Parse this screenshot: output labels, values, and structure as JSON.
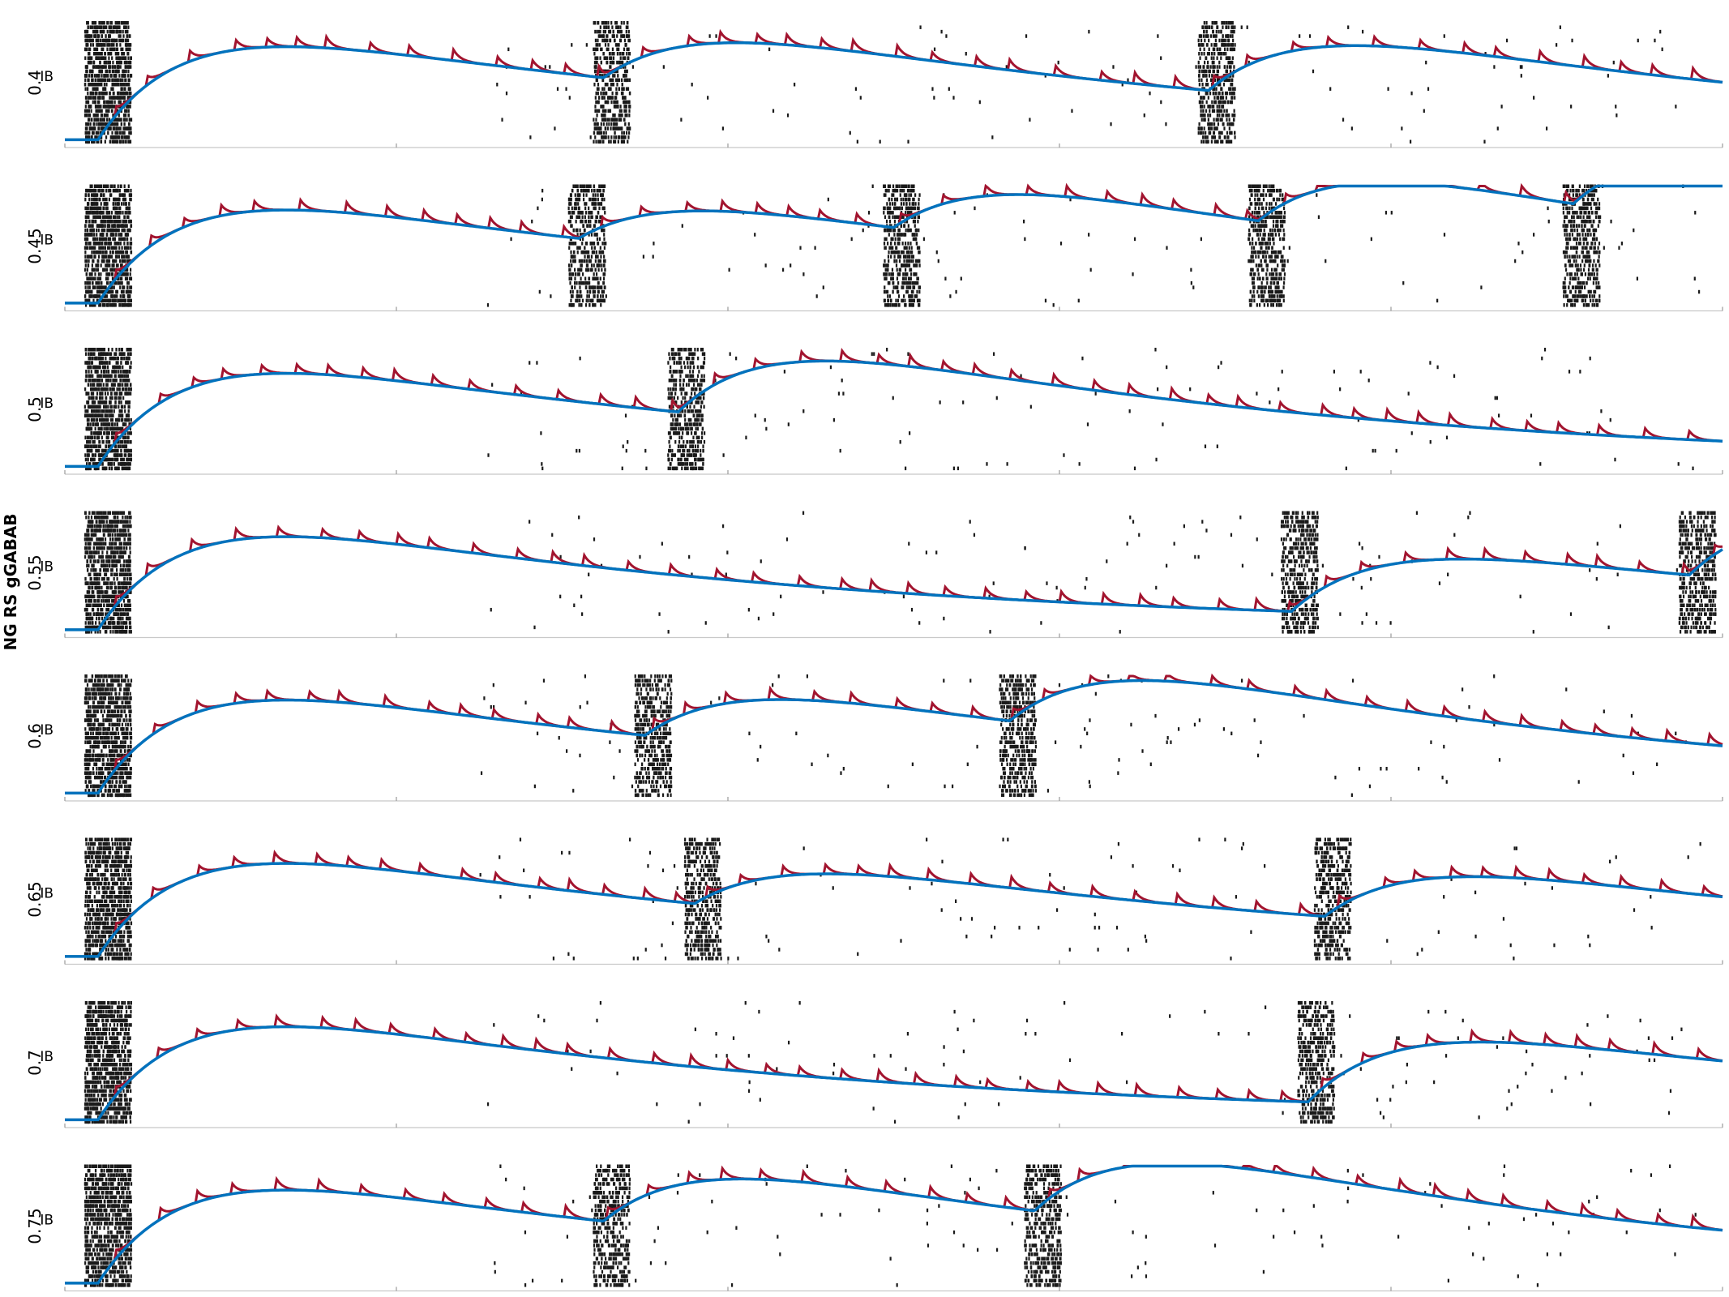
{
  "figure": {
    "ylabel": "NG RS gGABAB",
    "row_label": "IB",
    "colors": {
      "spikes": "#1a1a1a",
      "red_trace": "#a2142f",
      "blue_trace": "#0072bd",
      "axis": "#c8c8c8"
    }
  },
  "chart_data": {
    "type": "line",
    "ylabel": "NG RS gGABAB",
    "title": "",
    "xlabel": "",
    "panel_label": "IB",
    "grid": false,
    "legend": "none",
    "tick_labels": "none",
    "panels": [
      {
        "gGABAB": "0.4",
        "bursts": [
          0.02,
          0.325,
          0.69
        ]
      },
      {
        "gGABAB": "0.45",
        "bursts": [
          0.02,
          0.31,
          0.5,
          0.72,
          0.91
        ]
      },
      {
        "gGABAB": "0.5",
        "bursts": [
          0.02,
          0.37
        ]
      },
      {
        "gGABAB": "0.55",
        "bursts": [
          0.02,
          0.74,
          0.98
        ]
      },
      {
        "gGABAB": "0.6",
        "bursts": [
          0.02,
          0.35,
          0.57
        ]
      },
      {
        "gGABAB": "0.65",
        "bursts": [
          0.02,
          0.38,
          0.76
        ]
      },
      {
        "gGABAB": "0.7",
        "bursts": [
          0.02,
          0.75
        ]
      },
      {
        "gGABAB": "0.75",
        "bursts": [
          0.02,
          0.325,
          0.585
        ]
      }
    ]
  }
}
